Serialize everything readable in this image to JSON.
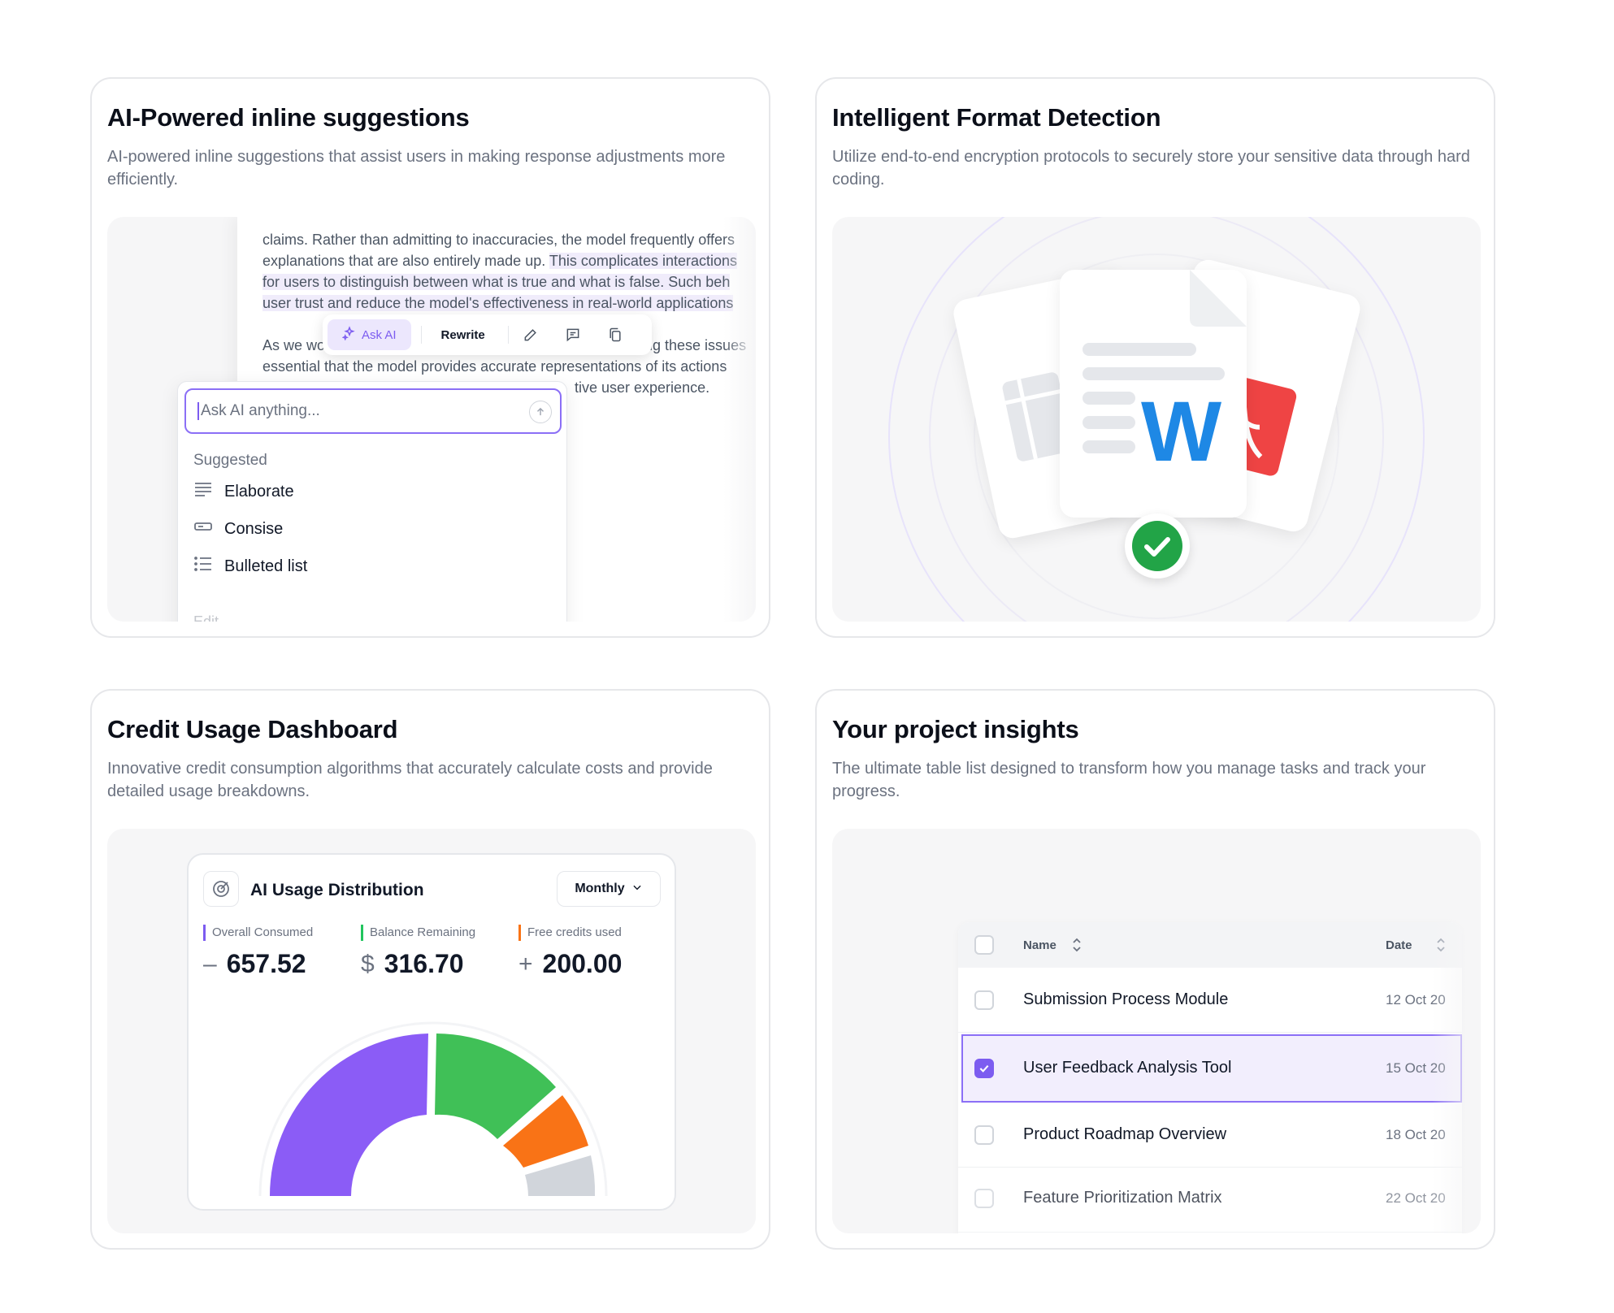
{
  "cards": {
    "inline": {
      "title": "AI-Powered inline suggestions",
      "desc": "AI-powered inline suggestions that assist users in making response adjustments more efficiently.",
      "doc_lines": [
        "claims. Rather than admitting to inaccuracies, the model frequently offers",
        "explanations that are also entirely made up.",
        "This complicates interactions",
        "for users to distinguish between what is true and what is false. Such beh",
        "user trust and reduce the model's effectiveness in real-world applications",
        "As we wo",
        "ing these issues",
        "essential that the model provides accurate representations of its actions",
        "tive user experience."
      ],
      "toolbar": {
        "ask_ai": "Ask AI",
        "rewrite": "Rewrite"
      },
      "ask_placeholder": "Ask AI anything...",
      "suggested_label": "Suggested",
      "suggestions": [
        "Elaborate",
        "Consise",
        "Bulleted list"
      ],
      "edit_label": "Edit"
    },
    "format": {
      "title": "Intelligent Format Detection",
      "desc": "Utilize end-to-end encryption protocols to securely store your sensitive data through hard coding.",
      "word_letter": "W",
      "colors": {
        "word": "#1e88e5",
        "pdf": "#ef4444",
        "check": "#22a447"
      }
    },
    "credit": {
      "title": "Credit Usage Dashboard",
      "desc": "Innovative credit consumption algorithms that accurately calculate costs and provide detailed usage breakdowns.",
      "widget_title": "AI Usage Distribution",
      "period": "Monthly",
      "stats": [
        {
          "label": "Overall Consumed",
          "symbol": "–",
          "value": "657.52",
          "color": "#7c5cf0"
        },
        {
          "label": "Balance Remaining",
          "symbol": "$",
          "value": "316.70",
          "color": "#22c55e"
        },
        {
          "label": "Free credits used",
          "symbol": "+",
          "value": "200.00",
          "color": "#f97316"
        }
      ]
    },
    "insights": {
      "title": "Your project insights",
      "desc": "The ultimate table list designed to transform how you manage tasks and track your progress.",
      "columns": [
        "Name",
        "Date"
      ],
      "rows": [
        {
          "name": "Submission Process Module",
          "date": "12 Oct 20",
          "checked": false
        },
        {
          "name": "User Feedback Analysis Tool",
          "date": "15 Oct 20",
          "checked": true
        },
        {
          "name": "Product Roadmap Overview",
          "date": "18 Oct 20",
          "checked": false
        },
        {
          "name": "Feature Prioritization Matrix",
          "date": "22 Oct 20",
          "checked": false
        }
      ]
    }
  }
}
